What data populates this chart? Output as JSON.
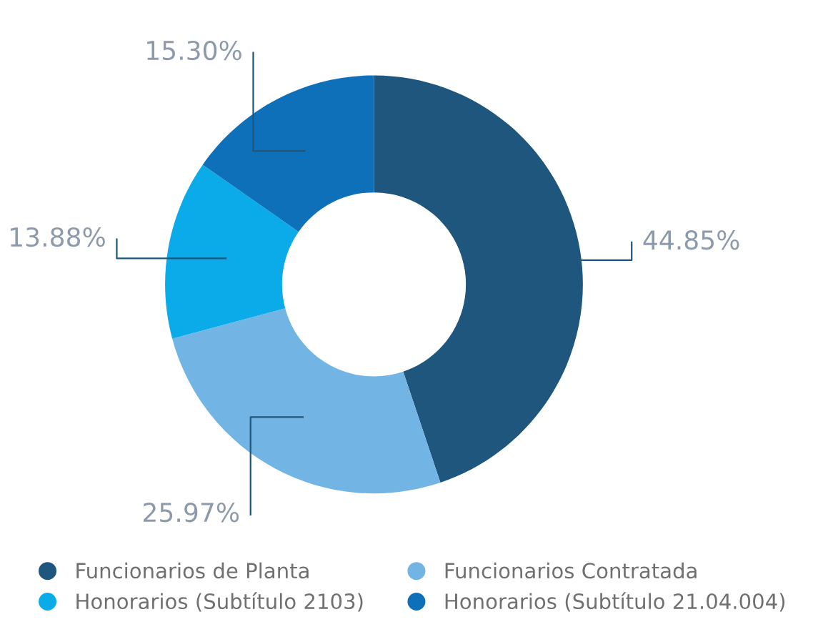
{
  "chart_data": {
    "type": "donut",
    "categories": [
      "Funcionarios de Planta",
      "Funcionarios Contratada",
      "Honorarios (Subtítulo 2103)",
      "Honorarios (Subtítulo 21.04.004)"
    ],
    "values": [
      44.85,
      25.97,
      13.88,
      15.3
    ],
    "colors": [
      "#1e567e",
      "#72b5e4",
      "#0aabe8",
      "#0e70b9"
    ],
    "value_labels": [
      "44.85%",
      "25.97%",
      "13.88%",
      "15.30%"
    ],
    "legend": "bottom"
  }
}
